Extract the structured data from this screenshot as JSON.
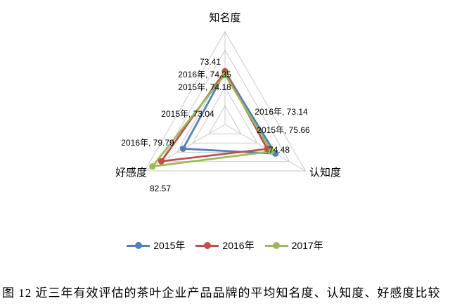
{
  "chart_data": {
    "type": "radar",
    "categories": [
      "知名度",
      "认知度",
      "好感度"
    ],
    "series": [
      {
        "name": "2015年",
        "color": "#4F81BD",
        "values": [
          74.18,
          75.66,
          73.04
        ],
        "point_labels": [
          "2015年, 74.18",
          "2015年, 75.66",
          "2015年, 73.04"
        ]
      },
      {
        "name": "2016年",
        "color": "#C0504D",
        "values": [
          74.35,
          73.14,
          79.79
        ],
        "point_labels": [
          "2016年, 74.35",
          "2016年, 73.14",
          "2016年, 79.79"
        ]
      },
      {
        "name": "2017年",
        "color": "#9BBB59",
        "values": [
          73.41,
          74.48,
          82.57
        ],
        "point_labels": [
          "73.41",
          "74.48",
          "82.57"
        ]
      }
    ],
    "axis": {
      "min": 60,
      "max": 85,
      "rings": 5
    },
    "grid_color": "#C9C9C9",
    "label_color": "#000000",
    "legend_position": "bottom"
  },
  "caption": "图 12 近三年有效评估的茶叶企业产品品牌的平均知名度、认知度、好感度比较"
}
